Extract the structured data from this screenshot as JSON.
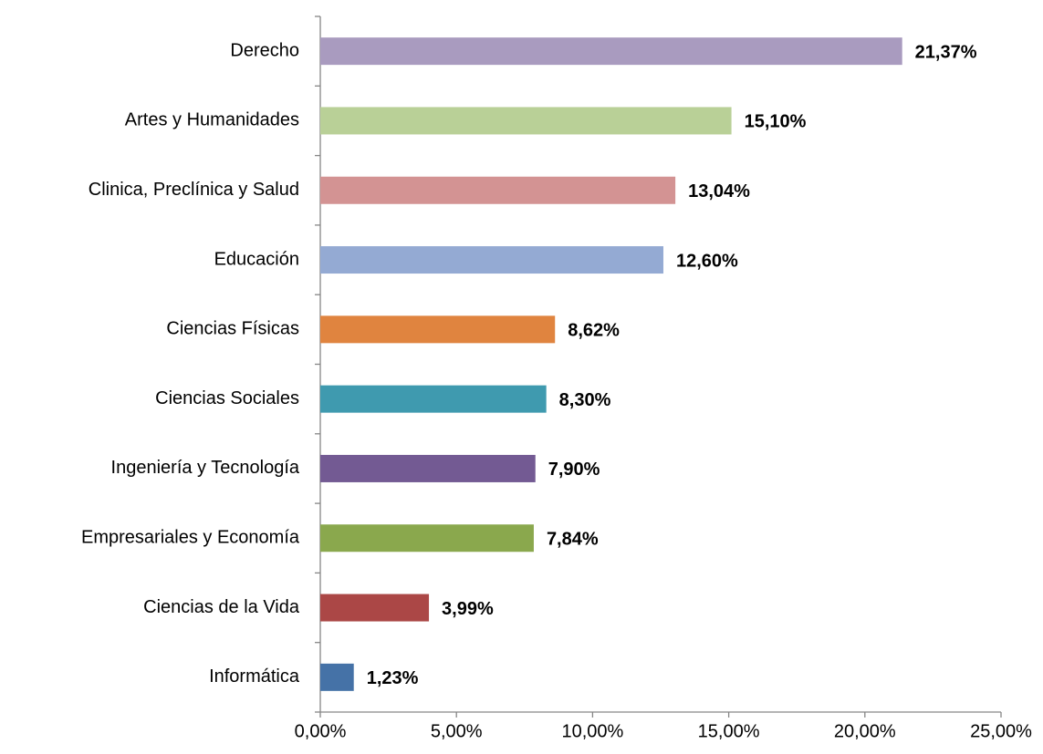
{
  "chart_data": {
    "type": "hbar",
    "categories": [
      "Derecho",
      "Artes y Humanidades",
      "Clinica, Preclínica y Salud",
      "Educación",
      "Ciencias Físicas",
      "Ciencias Sociales",
      "Ingeniería y Tecnología",
      "Empresariales y Economía",
      "Ciencias de la Vida",
      "Informática"
    ],
    "values": [
      21.37,
      15.1,
      13.04,
      12.6,
      8.62,
      8.3,
      7.9,
      7.84,
      3.99,
      1.23
    ],
    "value_labels": [
      "21,37%",
      "15,10%",
      "13,04%",
      "12,60%",
      "8,62%",
      "8,30%",
      "7,90%",
      "7,84%",
      "3,99%",
      "1,23%"
    ],
    "colors": [
      "#a99bbf",
      "#b9d097",
      "#d39393",
      "#94aad3",
      "#e0843f",
      "#3f9aaf",
      "#735a93",
      "#8aa84d",
      "#ab4746",
      "#4572a7"
    ],
    "xlim": [
      0,
      25
    ],
    "xticks": [
      {
        "value": 0,
        "label": "0,00%"
      },
      {
        "value": 5,
        "label": "5,00%"
      },
      {
        "value": 10,
        "label": "10,00%"
      },
      {
        "value": 15,
        "label": "15,00%"
      },
      {
        "value": 20,
        "label": "20,00%"
      },
      {
        "value": 25,
        "label": "25,00%"
      }
    ]
  }
}
